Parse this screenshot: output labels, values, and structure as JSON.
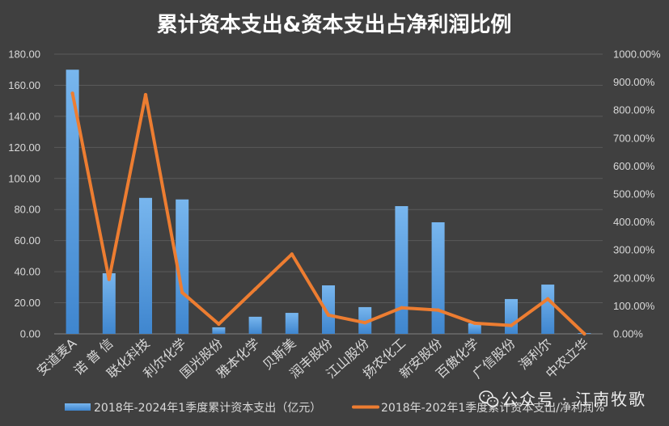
{
  "chart_data": {
    "type": "bar",
    "title": "累计资本支出&资本支出占净利润比例",
    "categories": [
      "安道麦A",
      "诺 普 信",
      "联化科技",
      "利尔化学",
      "国光股份",
      "雅本化学",
      "贝斯美",
      "润丰股份",
      "江山股份",
      "扬农化工",
      "新安股份",
      "百傲化学",
      "广信股份",
      "海利尔",
      "中农立华"
    ],
    "series": [
      {
        "name": "2018年-2024年1季度累计资本支出（亿元）",
        "type": "bar",
        "axis": "left",
        "color": "#5b9bd5",
        "values": [
          170.0,
          39.0,
          87.5,
          86.5,
          4.2,
          11.0,
          13.5,
          31.2,
          17.2,
          82.2,
          71.8,
          6.8,
          22.4,
          31.7,
          0.5
        ]
      },
      {
        "name": "2018年-202年1季度累计资本支出/净利润%",
        "type": "line",
        "axis": "right",
        "color": "#ed7d31",
        "values": [
          860,
          195,
          855,
          148,
          35,
          160,
          285,
          67,
          40,
          93,
          85,
          38,
          30,
          125,
          0
        ]
      }
    ],
    "y_left": {
      "min": 0,
      "max": 180,
      "step": 20,
      "ticks": [
        "0.00",
        "20.00",
        "40.00",
        "60.00",
        "80.00",
        "100.00",
        "120.00",
        "140.00",
        "160.00",
        "180.00"
      ]
    },
    "y_right": {
      "min": 0,
      "max": 1000,
      "step": 100,
      "unit": "%",
      "ticks": [
        "0.00%",
        "100.00%",
        "200.00%",
        "300.00%",
        "400.00%",
        "500.00%",
        "600.00%",
        "700.00%",
        "800.00%",
        "900.00%",
        "1000.00%"
      ]
    },
    "xlabel": "",
    "ylabel": "",
    "grid": true,
    "legend": "bottom"
  },
  "watermark": {
    "icon": "wechat-icon",
    "text": "公众号 · 江南牧歌"
  },
  "colors": {
    "background": "#404040",
    "gridline": "#5a5a5a",
    "text": "#d9d9d9"
  }
}
